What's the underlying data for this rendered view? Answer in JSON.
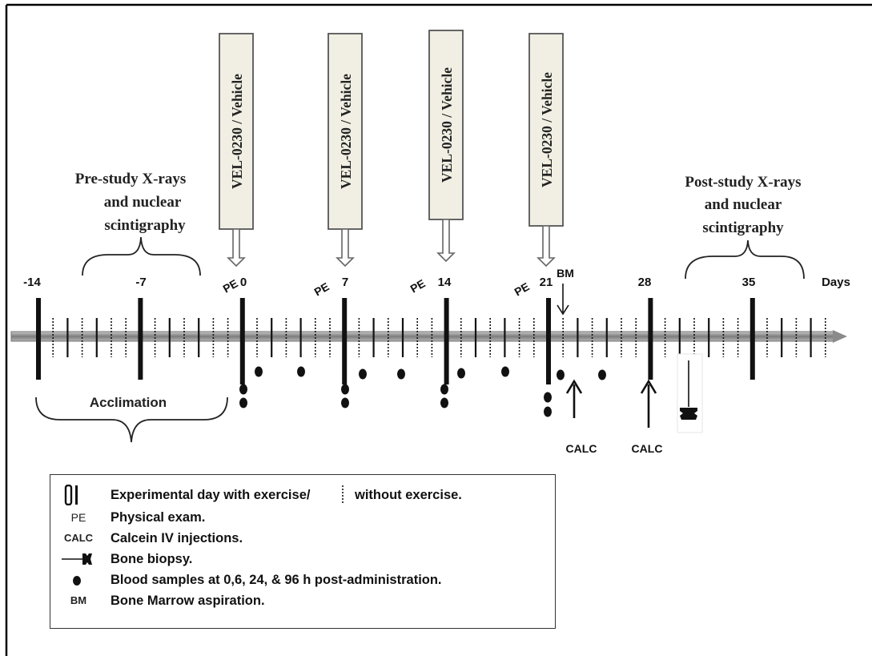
{
  "diagram": {
    "day_labels": [
      "-14",
      "-7",
      "0",
      "7",
      "14",
      "21",
      "28",
      "35"
    ],
    "days_label": "Days",
    "pe_label": "PE",
    "bm_label": "BM",
    "calc_label": "CALC",
    "drug_label": "VEL-0230 / Vehicle",
    "pre_study": [
      "Pre-study X-rays",
      "and nuclear",
      "scintigraphy"
    ],
    "post_study": [
      "Post-study X-rays",
      "and nuclear",
      "scintigraphy"
    ],
    "acclimation": "Acclimation",
    "icons": [
      "bone-biopsy-icon",
      "blood-sample-dot-icon",
      "exercise-day-tick-icon",
      "no-exercise-day-tick-icon"
    ]
  },
  "legend": {
    "exercise_text": "Experimental day with exercise/",
    "no_exercise_text": "without exercise.",
    "pe_symbol": "PE",
    "pe_text": "Physical exam.",
    "calc_symbol": "CALC",
    "calc_text": "Calcein IV injections.",
    "biopsy_text": "Bone biopsy.",
    "blood_text": "Blood samples at 0,6, 24, & 96 h post-administration.",
    "bm_symbol": "BM",
    "bm_text": "Bone Marrow aspiration."
  },
  "colors": {
    "axis": "#8a8a8a",
    "box_fill": "#f1efe3",
    "ink": "#111111"
  }
}
